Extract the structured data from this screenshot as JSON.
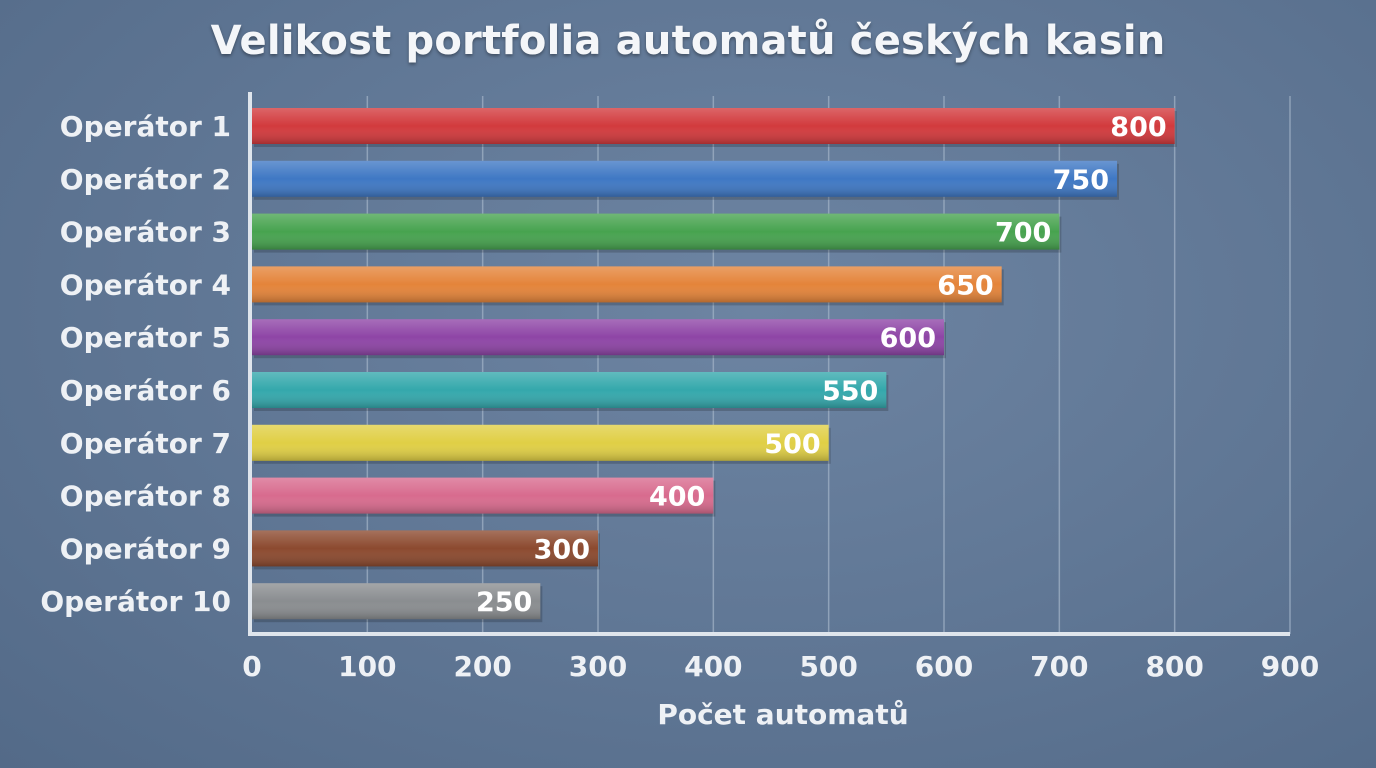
{
  "colors": {
    "background": "#5f7694",
    "text": "#eef1f5",
    "gridline": "#9fb0c4",
    "axis": "#dfe5ec"
  },
  "chart_data": {
    "type": "bar",
    "orientation": "horizontal",
    "title": "Velikost portfolia automatů českých kasin",
    "xlabel": "Počet automatů",
    "ylabel": "",
    "categories": [
      "Operátor 1",
      "Operátor 2",
      "Operátor 3",
      "Operátor 4",
      "Operátor 5",
      "Operátor 6",
      "Operátor 7",
      "Operátor 8",
      "Operátor 9",
      "Operátor 10"
    ],
    "values": [
      800,
      750,
      700,
      650,
      600,
      550,
      500,
      400,
      300,
      250
    ],
    "bar_colors": [
      "#d23a3d",
      "#3f78c4",
      "#47a34f",
      "#e4843a",
      "#8e45a6",
      "#34a8ac",
      "#e0cf45",
      "#d86b8e",
      "#8c4a2f",
      "#8a8d90"
    ],
    "data_labels": [
      "800",
      "750",
      "700",
      "650",
      "600",
      "550",
      "500",
      "400",
      "300",
      "250"
    ],
    "xlim": [
      0,
      900
    ],
    "x_ticks": [
      0,
      100,
      200,
      300,
      400,
      500,
      600,
      700,
      800,
      900
    ],
    "x_tick_labels": [
      "0",
      "100",
      "200",
      "300",
      "400",
      "500",
      "600",
      "700",
      "800",
      "900"
    ],
    "grid": "vertical",
    "legend": "none"
  }
}
